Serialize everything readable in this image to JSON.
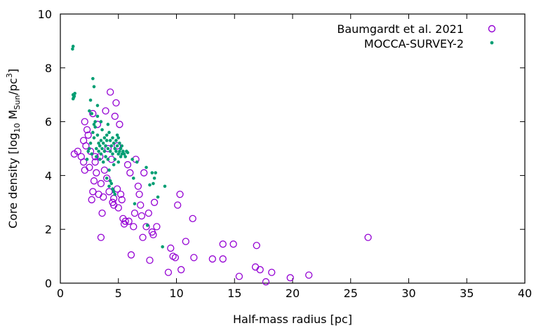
{
  "chart_data": {
    "type": "scatter",
    "xlabel": "Half-mass radius [pc]",
    "ylabel_parts": [
      "Core density [log",
      "10",
      " M",
      "Sun",
      "/pc",
      "3",
      "]"
    ],
    "xlim": [
      0,
      40
    ],
    "ylim": [
      0,
      10
    ],
    "x_ticks": [
      "0",
      "5",
      "10",
      "15",
      "20",
      "25",
      "30",
      "35",
      "40"
    ],
    "y_ticks": [
      "0",
      "2",
      "4",
      "6",
      "8",
      "10"
    ],
    "grid": false,
    "legend_position": "top-right",
    "series": [
      {
        "name": "Baumgardt et al. 2021",
        "marker": "open-circle",
        "color": "#9400d3",
        "points": [
          [
            1.2,
            4.8
          ],
          [
            1.5,
            4.9
          ],
          [
            1.8,
            4.7
          ],
          [
            2.0,
            5.3
          ],
          [
            2.1,
            6.0
          ],
          [
            2.2,
            5.1
          ],
          [
            2.3,
            5.7
          ],
          [
            2.0,
            4.5
          ],
          [
            2.1,
            4.2
          ],
          [
            2.5,
            4.3
          ],
          [
            2.6,
            4.9
          ],
          [
            2.8,
            6.3
          ],
          [
            2.9,
            3.8
          ],
          [
            2.7,
            3.1
          ],
          [
            2.8,
            3.4
          ],
          [
            3.0,
            4.5
          ],
          [
            3.1,
            4.1
          ],
          [
            3.2,
            5.9
          ],
          [
            3.3,
            3.3
          ],
          [
            3.4,
            4.7
          ],
          [
            3.5,
            3.7
          ],
          [
            3.6,
            2.6
          ],
          [
            3.7,
            3.2
          ],
          [
            3.8,
            4.2
          ],
          [
            3.9,
            6.4
          ],
          [
            4.0,
            3.9
          ],
          [
            4.1,
            5.0
          ],
          [
            4.2,
            3.4
          ],
          [
            4.3,
            7.1
          ],
          [
            4.4,
            4.6
          ],
          [
            4.5,
            3.0
          ],
          [
            4.6,
            2.9
          ],
          [
            4.7,
            6.2
          ],
          [
            4.8,
            6.7
          ],
          [
            4.9,
            3.5
          ],
          [
            5.0,
            2.8
          ],
          [
            5.1,
            5.9
          ],
          [
            5.2,
            3.3
          ],
          [
            5.3,
            3.1
          ],
          [
            5.4,
            2.4
          ],
          [
            5.5,
            2.2
          ],
          [
            5.6,
            2.3
          ],
          [
            5.8,
            4.4
          ],
          [
            5.9,
            2.3
          ],
          [
            6.0,
            4.1
          ],
          [
            6.1,
            1.05
          ],
          [
            6.3,
            2.1
          ],
          [
            6.4,
            2.6
          ],
          [
            6.5,
            4.6
          ],
          [
            6.7,
            3.6
          ],
          [
            6.8,
            3.3
          ],
          [
            6.9,
            2.9
          ],
          [
            7.0,
            2.5
          ],
          [
            7.1,
            1.7
          ],
          [
            7.2,
            4.1
          ],
          [
            7.4,
            2.1
          ],
          [
            7.6,
            2.6
          ],
          [
            7.7,
            0.85
          ],
          [
            7.9,
            1.9
          ],
          [
            8.0,
            1.8
          ],
          [
            8.1,
            3.0
          ],
          [
            8.3,
            2.1
          ],
          [
            3.5,
            1.7
          ],
          [
            9.3,
            0.4
          ],
          [
            9.5,
            1.3
          ],
          [
            9.7,
            1.0
          ],
          [
            9.9,
            0.95
          ],
          [
            10.1,
            2.9
          ],
          [
            10.3,
            3.3
          ],
          [
            10.4,
            0.5
          ],
          [
            10.8,
            1.55
          ],
          [
            11.4,
            2.4
          ],
          [
            11.5,
            0.95
          ],
          [
            13.1,
            0.9
          ],
          [
            14.0,
            0.9
          ],
          [
            14.0,
            1.45
          ],
          [
            14.9,
            1.45
          ],
          [
            15.4,
            0.25
          ],
          [
            16.8,
            0.6
          ],
          [
            16.9,
            1.4
          ],
          [
            17.2,
            0.5
          ],
          [
            17.7,
            0.05
          ],
          [
            18.2,
            0.4
          ],
          [
            19.8,
            0.2
          ],
          [
            21.4,
            0.3
          ],
          [
            26.5,
            1.7
          ],
          [
            4.6,
            3.15
          ],
          [
            3.0,
            4.7
          ],
          [
            2.4,
            5.5
          ],
          [
            4.9,
            5.1
          ]
        ]
      },
      {
        "name": "MOCCA-SURVEY-2",
        "marker": "filled-dot",
        "color": "#009e73",
        "points": [
          [
            1.05,
            8.7
          ],
          [
            1.1,
            8.8
          ],
          [
            1.1,
            7.0
          ],
          [
            1.15,
            6.9
          ],
          [
            1.2,
            6.95
          ],
          [
            1.25,
            7.05
          ],
          [
            1.1,
            6.85
          ],
          [
            2.3,
            4.6
          ],
          [
            2.4,
            4.9
          ],
          [
            2.5,
            5.0
          ],
          [
            2.5,
            6.4
          ],
          [
            2.6,
            6.8
          ],
          [
            2.6,
            5.2
          ],
          [
            2.7,
            6.3
          ],
          [
            2.7,
            4.8
          ],
          [
            2.8,
            7.6
          ],
          [
            2.8,
            5.6
          ],
          [
            2.9,
            5.4
          ],
          [
            2.9,
            7.3
          ],
          [
            3.0,
            6.0
          ],
          [
            3.0,
            5.8
          ],
          [
            3.1,
            5.0
          ],
          [
            3.1,
            4.7
          ],
          [
            3.2,
            5.5
          ],
          [
            3.2,
            6.6
          ],
          [
            3.3,
            5.2
          ],
          [
            3.3,
            4.9
          ],
          [
            3.4,
            5.1
          ],
          [
            3.4,
            4.6
          ],
          [
            3.5,
            5.3
          ],
          [
            3.5,
            4.8
          ],
          [
            3.6,
            5.0
          ],
          [
            3.6,
            5.7
          ],
          [
            3.7,
            5.2
          ],
          [
            3.7,
            4.5
          ],
          [
            3.8,
            5.4
          ],
          [
            3.8,
            4.9
          ],
          [
            3.9,
            5.1
          ],
          [
            3.9,
            4.7
          ],
          [
            4.0,
            5.5
          ],
          [
            4.0,
            5.3
          ],
          [
            4.0,
            3.9
          ],
          [
            4.1,
            5.0
          ],
          [
            4.1,
            4.6
          ],
          [
            4.2,
            5.6
          ],
          [
            4.2,
            4.2
          ],
          [
            4.2,
            3.6
          ],
          [
            4.3,
            5.3
          ],
          [
            4.3,
            4.9
          ],
          [
            4.3,
            3.8
          ],
          [
            4.4,
            5.1
          ],
          [
            4.4,
            3.7
          ],
          [
            4.5,
            5.4
          ],
          [
            4.5,
            4.8
          ],
          [
            4.5,
            3.5
          ],
          [
            4.6,
            5.2
          ],
          [
            4.6,
            4.4
          ],
          [
            4.6,
            3.4
          ],
          [
            4.7,
            5.0
          ],
          [
            4.7,
            4.6
          ],
          [
            4.7,
            3.3
          ],
          [
            4.8,
            5.3
          ],
          [
            4.8,
            4.9
          ],
          [
            4.9,
            5.5
          ],
          [
            4.9,
            5.1
          ],
          [
            5.0,
            5.4
          ],
          [
            5.0,
            4.8
          ],
          [
            5.0,
            4.5
          ],
          [
            5.1,
            5.2
          ],
          [
            5.1,
            4.9
          ],
          [
            5.2,
            5.0
          ],
          [
            5.2,
            4.7
          ],
          [
            5.3,
            5.1
          ],
          [
            5.3,
            4.8
          ],
          [
            5.4,
            4.9
          ],
          [
            5.5,
            4.8
          ],
          [
            5.6,
            4.7
          ],
          [
            5.7,
            4.9
          ],
          [
            5.8,
            4.85
          ],
          [
            6.2,
            4.6
          ],
          [
            6.3,
            3.9
          ],
          [
            6.4,
            2.95
          ],
          [
            6.6,
            4.5
          ],
          [
            7.4,
            4.3
          ],
          [
            7.7,
            3.65
          ],
          [
            7.9,
            4.1
          ],
          [
            8.0,
            3.7
          ],
          [
            8.1,
            3.9
          ],
          [
            8.2,
            4.1
          ],
          [
            8.4,
            3.2
          ],
          [
            9.0,
            3.6
          ],
          [
            8.8,
            1.35
          ],
          [
            7.5,
            2.15
          ],
          [
            3.2,
            6.2
          ],
          [
            2.9,
            5.9
          ],
          [
            3.5,
            6.0
          ],
          [
            4.1,
            5.9
          ]
        ]
      }
    ]
  }
}
